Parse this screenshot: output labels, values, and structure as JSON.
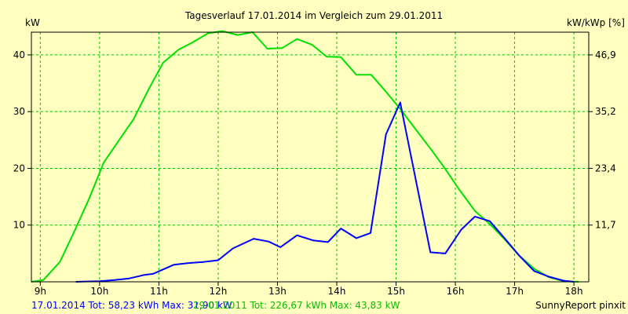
{
  "chart_data": {
    "type": "line",
    "title": "Tagesverlauf 17.01.2014 im Vergleich zum 29.01.2011",
    "ylabel": "kW",
    "ylabel_right": "kW/kWp [%]",
    "x_unit": "hour of day",
    "xlim": [
      8.85,
      18.25
    ],
    "ylim": [
      0,
      44
    ],
    "x_ticks": [
      {
        "v": 9,
        "label": "9h"
      },
      {
        "v": 10,
        "label": "10h"
      },
      {
        "v": 11,
        "label": "11h"
      },
      {
        "v": 12,
        "label": "12h"
      },
      {
        "v": 13,
        "label": "13h"
      },
      {
        "v": 14,
        "label": "14h"
      },
      {
        "v": 15,
        "label": "15h"
      },
      {
        "v": 16,
        "label": "16h"
      },
      {
        "v": 17,
        "label": "17h"
      },
      {
        "v": 18,
        "label": "18h"
      }
    ],
    "y_ticks": [
      {
        "v": 10,
        "label": "10"
      },
      {
        "v": 20,
        "label": "20"
      },
      {
        "v": 30,
        "label": "30"
      },
      {
        "v": 40,
        "label": "40"
      }
    ],
    "y2_ticks": [
      {
        "v": 10,
        "label": "11,7"
      },
      {
        "v": 20,
        "label": "23,4"
      },
      {
        "v": 30,
        "label": "35,2"
      },
      {
        "v": 40,
        "label": "46,9"
      }
    ],
    "grid": true,
    "series": [
      {
        "name": "17.01.2014",
        "color": "#0000ff",
        "x": [
          9.6,
          9.75,
          10.0,
          10.25,
          10.5,
          10.75,
          10.9,
          11.25,
          11.5,
          11.75,
          12.0,
          12.25,
          12.6,
          12.85,
          13.05,
          13.33,
          13.6,
          13.85,
          14.07,
          14.33,
          14.57,
          14.83,
          15.07,
          15.58,
          15.83,
          16.1,
          16.33,
          16.58,
          16.83,
          17.08,
          17.33,
          17.58,
          17.83,
          18.0
        ],
        "values": [
          0.0,
          0.05,
          0.1,
          0.3,
          0.6,
          1.2,
          1.4,
          3.0,
          3.3,
          3.5,
          3.8,
          5.9,
          7.6,
          7.1,
          6.1,
          8.2,
          7.3,
          7.0,
          9.4,
          7.7,
          8.6,
          26.0,
          31.6,
          5.2,
          5.0,
          9.2,
          11.5,
          10.7,
          7.7,
          4.6,
          1.9,
          0.9,
          0.2,
          0.0
        ]
      },
      {
        "name": "29.01.2011",
        "color": "#00e000",
        "x": [
          8.85,
          9.05,
          9.33,
          9.58,
          9.83,
          10.07,
          10.33,
          10.57,
          10.83,
          11.07,
          11.33,
          11.57,
          11.83,
          12.07,
          12.33,
          12.58,
          12.83,
          13.08,
          13.33,
          13.58,
          13.83,
          14.07,
          14.33,
          14.58,
          14.83,
          15.07,
          15.33,
          15.58,
          15.83,
          16.07,
          16.33,
          16.58,
          16.83,
          17.08,
          17.33,
          17.58,
          17.83,
          18.08
        ],
        "values": [
          0.0,
          0.3,
          3.5,
          9.0,
          14.8,
          21.0,
          25.0,
          28.6,
          34.0,
          38.6,
          40.9,
          42.2,
          43.8,
          44.2,
          43.5,
          44.0,
          41.1,
          41.2,
          42.8,
          41.8,
          39.7,
          39.6,
          36.5,
          36.5,
          33.5,
          30.5,
          26.9,
          23.5,
          19.9,
          16.2,
          12.5,
          10.2,
          7.5,
          4.6,
          2.3,
          0.8,
          0.1,
          0.0
        ]
      }
    ]
  },
  "footer": {
    "series1_summary": "17.01.2014 Tot: 58,23 kWh Max: 31,90 kW",
    "series2_summary": "29.01.2011 Tot: 226,67 kWh Max: 43,83 kW",
    "credit": "SunnyReport pinxit"
  },
  "colors": {
    "background": "#ffffc0",
    "grid": "#00c000",
    "series1": "#0000ff",
    "series2": "#00e000"
  }
}
